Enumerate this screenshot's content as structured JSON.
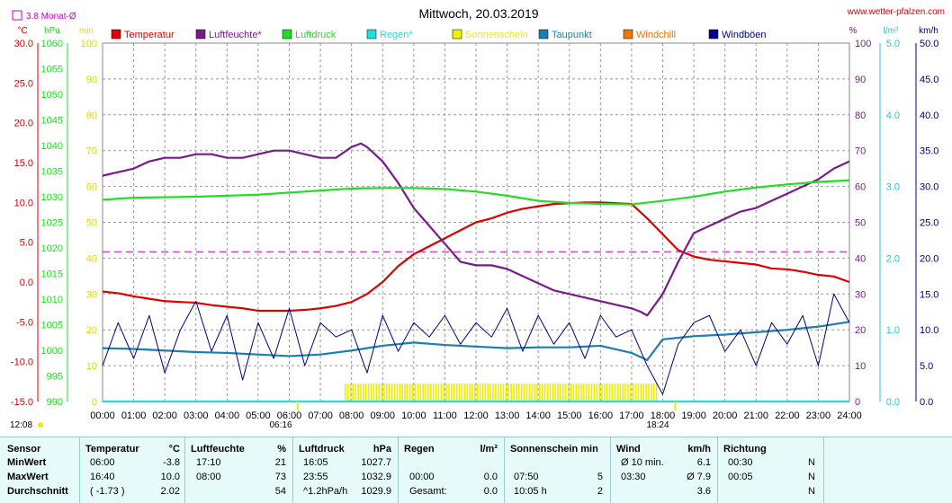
{
  "title": "Mittwoch, 20.03.2019",
  "website": "www.wetter-pfalzen.com",
  "monthly_avg_label": "3.8 Monat-Ø",
  "axis_units": {
    "temp": "°C",
    "press": "hPa",
    "sun": "min",
    "hum": "%",
    "rain": "l/m²",
    "wind": "km/h"
  },
  "sunrise": "06:16",
  "sunset": "18:24",
  "sun_culmination": "12:08",
  "legend": [
    {
      "label": "Temperatur",
      "color": "#e00000"
    },
    {
      "label": "Luftfeuchte*",
      "color": "#7a1a8c"
    },
    {
      "label": "Luftdruck",
      "color": "#22dd22"
    },
    {
      "label": "Regen*",
      "color": "#22dddd"
    },
    {
      "label": "Sonnenschein",
      "color": "#eeee00"
    },
    {
      "label": "Taupunkt",
      "color": "#1a7fb0"
    },
    {
      "label": "Windchill",
      "color": "#ee7700"
    },
    {
      "label": "Windböen",
      "color": "#000088"
    }
  ],
  "chart_data": {
    "type": "line",
    "title": "Mittwoch, 20.03.2019",
    "x_ticks": [
      "00:00",
      "01:00",
      "02:00",
      "03:00",
      "04:00",
      "05:00",
      "06:00",
      "07:00",
      "08:00",
      "09:00",
      "10:00",
      "11:00",
      "12:00",
      "13:00",
      "14:00",
      "15:00",
      "16:00",
      "17:00",
      "18:00",
      "19:00",
      "20:00",
      "21:00",
      "22:00",
      "23:00",
      "24:00"
    ],
    "axes": {
      "temp": {
        "unit": "°C",
        "ticks": [
          "30.0",
          "25.0",
          "20.0",
          "15.0",
          "10.0",
          "5.0",
          "0.0",
          "-5.0",
          "-10.0",
          "-15.0"
        ],
        "range": [
          -15,
          30
        ]
      },
      "press": {
        "unit": "hPa",
        "ticks": [
          "1060",
          "1055",
          "1050",
          "1045",
          "1040",
          "1035",
          "1030",
          "1025",
          "1020",
          "1015",
          "1010",
          "1005",
          "1000",
          "995",
          "990"
        ],
        "range": [
          990,
          1060
        ]
      },
      "sun": {
        "unit": "min",
        "ticks": [
          "100",
          "90",
          "80",
          "70",
          "60",
          "50",
          "40",
          "30",
          "20",
          "10",
          "0"
        ],
        "range": [
          0,
          100
        ]
      },
      "hum": {
        "unit": "%",
        "ticks": [
          "100",
          "90",
          "80",
          "70",
          "60",
          "50",
          "40",
          "30",
          "20",
          "10",
          "0"
        ],
        "range": [
          0,
          100
        ]
      },
      "rain": {
        "unit": "l/m²",
        "ticks": [
          "5.0",
          "4.0",
          "3.0",
          "2.0",
          "1.0",
          "0.0"
        ],
        "range": [
          0,
          5
        ]
      },
      "wind": {
        "unit": "km/h",
        "ticks": [
          "50.0",
          "45.0",
          "40.0",
          "35.0",
          "30.0",
          "25.0",
          "20.0",
          "15.0",
          "10.0",
          "5.0",
          "0.0"
        ],
        "range": [
          0,
          50
        ]
      }
    },
    "monthly_avg_temp": 3.8,
    "sunshine_interval": [
      7.8,
      17.85
    ],
    "series": [
      {
        "name": "Temperatur",
        "axis": "temp",
        "color": "#e00000",
        "x": [
          0,
          0.5,
          1,
          1.5,
          2,
          2.5,
          3,
          3.5,
          4,
          4.5,
          5,
          5.5,
          6,
          6.5,
          7,
          7.5,
          8,
          8.5,
          9,
          9.5,
          10,
          10.5,
          11,
          11.5,
          12,
          12.5,
          13,
          13.5,
          14,
          14.5,
          15,
          15.5,
          16,
          16.5,
          17,
          17.5,
          18,
          18.5,
          19,
          19.5,
          20,
          20.5,
          21,
          21.5,
          22,
          22.5,
          23,
          23.5,
          24
        ],
        "y": [
          -1.2,
          -1.4,
          -1.8,
          -2.1,
          -2.4,
          -2.5,
          -2.6,
          -2.9,
          -3.1,
          -3.3,
          -3.6,
          -3.6,
          -3.6,
          -3.5,
          -3.3,
          -3.0,
          -2.5,
          -1.5,
          0.0,
          2.0,
          3.5,
          4.5,
          5.5,
          6.5,
          7.5,
          8.0,
          8.7,
          9.2,
          9.5,
          9.8,
          9.9,
          10.0,
          10.0,
          9.9,
          9.8,
          8.0,
          6.0,
          4.0,
          3.2,
          2.8,
          2.6,
          2.4,
          2.2,
          1.7,
          1.6,
          1.3,
          0.9,
          0.7,
          0.0
        ]
      },
      {
        "name": "Luftfeuchte",
        "axis": "hum",
        "color": "#7a1a8c",
        "x": [
          0,
          0.5,
          1,
          1.5,
          2,
          2.5,
          3,
          3.5,
          4,
          4.5,
          5,
          5.5,
          6,
          6.5,
          7,
          7.5,
          8,
          8.3,
          8.5,
          9,
          9.5,
          10,
          10.5,
          11,
          11.5,
          12,
          12.5,
          13,
          13.5,
          14,
          14.5,
          15,
          15.5,
          16,
          16.5,
          17,
          17.3,
          17.5,
          18,
          18.5,
          19,
          19.5,
          20,
          20.5,
          21,
          21.5,
          22,
          22.5,
          23,
          23.5,
          24
        ],
        "y": [
          63,
          64,
          65,
          67,
          68,
          68,
          69,
          69,
          68,
          68,
          69,
          70,
          70,
          69,
          68,
          68,
          71,
          72,
          71,
          67,
          61,
          54,
          49,
          44,
          39,
          38,
          38,
          37,
          35,
          33,
          31,
          30,
          29,
          28,
          27,
          26,
          25,
          24,
          30,
          39,
          47,
          49,
          51,
          53,
          54,
          56,
          58,
          60,
          62,
          65,
          67
        ]
      },
      {
        "name": "Luftdruck",
        "axis": "press",
        "color": "#22dd22",
        "x": [
          0,
          1,
          2,
          3,
          4,
          5,
          6,
          7,
          8,
          9,
          10,
          11,
          12,
          13,
          14,
          15,
          16,
          17,
          18,
          19,
          20,
          21,
          22,
          23,
          24
        ],
        "y": [
          1029.4,
          1029.8,
          1029.9,
          1030.0,
          1030.2,
          1030.4,
          1030.8,
          1031.2,
          1031.6,
          1031.7,
          1031.7,
          1031.5,
          1031.0,
          1030.2,
          1029.2,
          1028.8,
          1028.6,
          1028.5,
          1029.2,
          1030.0,
          1031.0,
          1031.8,
          1032.4,
          1032.9,
          1033.2
        ]
      },
      {
        "name": "Regen",
        "axis": "rain",
        "color": "#22dddd",
        "x": [
          0,
          24
        ],
        "y": [
          0,
          0
        ]
      },
      {
        "name": "Taupunkt",
        "axis": "temp",
        "color": "#1a7fb0",
        "x": [
          0,
          1,
          2,
          3,
          4,
          5,
          6,
          7,
          8,
          9,
          10,
          11,
          12,
          13,
          14,
          15,
          16,
          17,
          17.5,
          18,
          19,
          20,
          21,
          22,
          23,
          24
        ],
        "y": [
          -8.3,
          -8.4,
          -8.6,
          -8.8,
          -8.9,
          -9.1,
          -9.3,
          -9.1,
          -8.6,
          -8.0,
          -7.6,
          -7.9,
          -8.1,
          -8.3,
          -8.2,
          -8.2,
          -8.0,
          -8.9,
          -9.8,
          -7.2,
          -6.8,
          -6.6,
          -6.3,
          -6.0,
          -5.6,
          -5.0
        ]
      },
      {
        "name": "Windböen",
        "axis": "wind",
        "color": "#000088",
        "x": [
          0,
          0.5,
          1,
          1.5,
          2,
          2.5,
          3,
          3.5,
          4,
          4.5,
          5,
          5.5,
          6,
          6.5,
          7,
          7.5,
          8,
          8.5,
          9,
          9.5,
          10,
          10.5,
          11,
          11.5,
          12,
          12.5,
          13,
          13.5,
          14,
          14.5,
          15,
          15.5,
          16,
          16.5,
          17,
          17.5,
          18,
          18.5,
          19,
          19.5,
          20,
          20.5,
          21,
          21.5,
          22,
          22.5,
          23,
          23.5,
          24
        ],
        "y": [
          5,
          11,
          6,
          12,
          4,
          10,
          14,
          7,
          12,
          3,
          11,
          6,
          13,
          5,
          11,
          9,
          10,
          4,
          12,
          7,
          11,
          9,
          12,
          8,
          11,
          9,
          13,
          7,
          12,
          8,
          11,
          6,
          12,
          9,
          10,
          5,
          1,
          8,
          11,
          12,
          7,
          10,
          5,
          11,
          8,
          12,
          5,
          15,
          11
        ]
      }
    ]
  },
  "stats": {
    "headers": {
      "sensor": "Sensor",
      "temp": "Temperatur",
      "temp_unit": "°C",
      "hum": "Luftfeuchte",
      "hum_unit": "%",
      "press": "Luftdruck",
      "press_unit": "hPa",
      "rain": "Regen",
      "rain_unit": "l/m²",
      "sun": "Sonnenschein min",
      "wind": "Wind",
      "wind_unit": "km/h",
      "dir": "Richtung"
    },
    "rows": [
      {
        "label": "MinWert",
        "temp_t": "06:00",
        "temp_v": "-3.8",
        "hum_t": "17:10",
        "hum_v": "21",
        "press_t": "16:05",
        "press_v": "1027.7",
        "rain_t": "",
        "rain_v": "",
        "sun_t": "",
        "sun_v": "",
        "wind_t": "Ø 10 min.",
        "wind_v": "6.1",
        "dir_t": "00:30",
        "dir_v": "N"
      },
      {
        "label": "MaxWert",
        "temp_t": "16:40",
        "temp_v": "10.0",
        "hum_t": "08:00",
        "hum_v": "73",
        "press_t": "23:55",
        "press_v": "1032.9",
        "rain_t": "00:00",
        "rain_v": "0.0",
        "sun_t": "07:50",
        "sun_v": "5",
        "wind_t": "03:30",
        "wind_v": "Ø 7.9",
        "dir_t": "00:05",
        "dir_v": "N"
      },
      {
        "label": "Durchschnitt",
        "temp_t": "( -1.73 )",
        "temp_v": "2.02",
        "hum_t": "",
        "hum_v": "54",
        "press_t": "^1.2hPa/h",
        "press_v": "1029.9",
        "rain_t": "Gesamt:",
        "rain_v": "0.0",
        "sun_t": "10:05 h",
        "sun_v": "2",
        "wind_t": "",
        "wind_v": "3.6",
        "dir_t": "",
        "dir_v": "N"
      }
    ]
  }
}
